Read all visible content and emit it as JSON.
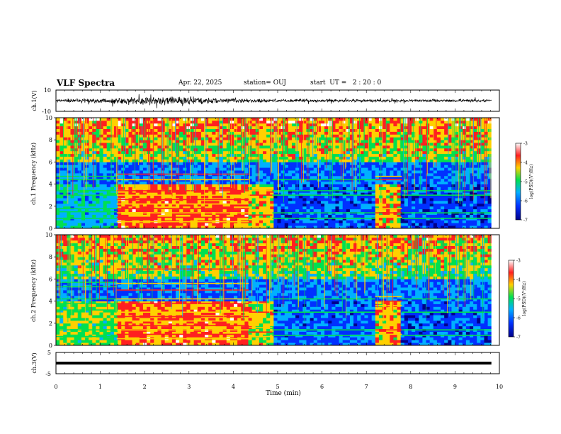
{
  "header": {
    "title": "VLF Spectra",
    "date": "Apr. 22, 2025",
    "station": "station= OUJ",
    "start_ut": "start  UT =   2 : 20 : 0"
  },
  "colorbar": {
    "label": "log(PSD)(V²/Hz)",
    "ticks": [
      "-3",
      "-4",
      "-5",
      "-6",
      "-7"
    ],
    "range": [
      -7,
      -3
    ],
    "colors": [
      "#ffffff",
      "#ff2020",
      "#ffd000",
      "#00e050",
      "#00b0ff",
      "#0030ff",
      "#00008a"
    ]
  },
  "chart_data": [
    {
      "type": "line",
      "panel": "ch1-waveform",
      "ylabel": "ch.1(V)",
      "ylim": [
        -10,
        10
      ],
      "ytick_labels": [
        "10",
        "-10"
      ],
      "x_range_min": [
        0,
        10
      ],
      "amplitude_envelope": [
        {
          "t": 0.0,
          "amp": 1.2
        },
        {
          "t": 0.5,
          "amp": 1.6
        },
        {
          "t": 1.0,
          "amp": 2.2
        },
        {
          "t": 1.5,
          "amp": 3.0
        },
        {
          "t": 2.0,
          "amp": 3.6
        },
        {
          "t": 2.5,
          "amp": 3.8
        },
        {
          "t": 3.0,
          "amp": 3.4
        },
        {
          "t": 3.5,
          "amp": 2.6
        },
        {
          "t": 4.0,
          "amp": 1.8
        },
        {
          "t": 5.0,
          "amp": 1.4
        },
        {
          "t": 6.0,
          "amp": 1.3
        },
        {
          "t": 7.0,
          "amp": 1.3
        },
        {
          "t": 8.0,
          "amp": 1.2
        },
        {
          "t": 9.0,
          "amp": 1.3
        },
        {
          "t": 9.8,
          "amp": 1.2
        }
      ]
    },
    {
      "type": "heatmap",
      "panel": "ch1-spectrogram",
      "ylabel": "ch.1 Frequency (kHz)",
      "ylim": [
        0,
        10
      ],
      "ytick_labels": [
        "0",
        "2",
        "4",
        "6",
        "8",
        "10"
      ],
      "x_range_min": [
        0,
        9.82
      ],
      "segments_min": [
        {
          "t0": 0.0,
          "t1": 1.37,
          "low_band_level": -5.5,
          "lines_khz": [
            0.9,
            1.5,
            1.8,
            3.0,
            3.4,
            4.4,
            4.7
          ]
        },
        {
          "t0": 1.37,
          "t1": 4.35,
          "low_band_level": -3.9,
          "lines_khz": [
            0.6,
            1.0,
            1.4,
            1.8,
            2.2,
            2.6,
            3.0,
            3.4,
            4.4,
            4.9
          ]
        },
        {
          "t0": 4.35,
          "t1": 4.88,
          "low_band_level": -4.4,
          "lines_khz": [
            0.8,
            1.2,
            1.6,
            3.0,
            3.4
          ]
        },
        {
          "t0": 4.88,
          "t1": 7.2,
          "low_band_level": -6.2,
          "lines_khz": [
            0.9,
            1.4,
            3.0,
            3.4,
            4.4
          ]
        },
        {
          "t0": 7.2,
          "t1": 7.8,
          "low_band_level": -4.3,
          "lines_khz": [
            1.0,
            1.4,
            1.8,
            4.4,
            4.7
          ]
        },
        {
          "t0": 7.8,
          "t1": 9.82,
          "low_band_level": -6.3,
          "lines_khz": [
            0.9,
            1.4,
            3.0,
            3.4
          ]
        }
      ],
      "high_band_level": -4.8
    },
    {
      "type": "heatmap",
      "panel": "ch2-spectrogram",
      "ylabel": "ch.2 Frequency (kHz)",
      "ylim": [
        0,
        10
      ],
      "ytick_labels": [
        "0",
        "2",
        "4",
        "6",
        "8",
        "10"
      ],
      "x_range_min": [
        0,
        9.82
      ],
      "segments_min": [
        {
          "t0": 0.0,
          "t1": 1.37,
          "low_band_level": -4.8,
          "lines_khz": [
            0.8,
            1.4,
            3.2,
            3.8,
            4.2,
            5.3,
            5.7
          ]
        },
        {
          "t0": 1.37,
          "t1": 4.35,
          "low_band_level": -3.9,
          "lines_khz": [
            0.6,
            1.0,
            1.4,
            1.8,
            2.2,
            2.6,
            3.0,
            3.8,
            4.2,
            5.0,
            5.6,
            6.9
          ]
        },
        {
          "t0": 4.35,
          "t1": 4.88,
          "low_band_level": -4.5,
          "lines_khz": [
            0.8,
            1.2,
            1.6,
            3.0,
            3.8
          ]
        },
        {
          "t0": 4.88,
          "t1": 7.2,
          "low_band_level": -6.1,
          "lines_khz": [
            0.9,
            1.4,
            3.0,
            4.2
          ]
        },
        {
          "t0": 7.2,
          "t1": 7.8,
          "low_band_level": -4.2,
          "lines_khz": [
            1.0,
            1.4,
            3.6,
            4.0,
            4.4
          ]
        },
        {
          "t0": 7.8,
          "t1": 9.82,
          "low_band_level": -6.2,
          "lines_khz": [
            0.9,
            1.4,
            3.0,
            4.2
          ]
        }
      ],
      "high_band_level": -5.0
    },
    {
      "type": "line",
      "panel": "ch3-waveform",
      "ylabel": "ch.3(V)",
      "ylim": [
        -5,
        5
      ],
      "ytick_labels": [
        "5",
        "-5"
      ],
      "x_range_min": [
        0,
        9.82
      ],
      "value": 0,
      "xlabel": "Time  (min)",
      "xtick_labels": [
        "0",
        "1",
        "2",
        "3",
        "4",
        "5",
        "6",
        "7",
        "8",
        "9",
        "10"
      ],
      "xlim": [
        0,
        10
      ]
    }
  ]
}
